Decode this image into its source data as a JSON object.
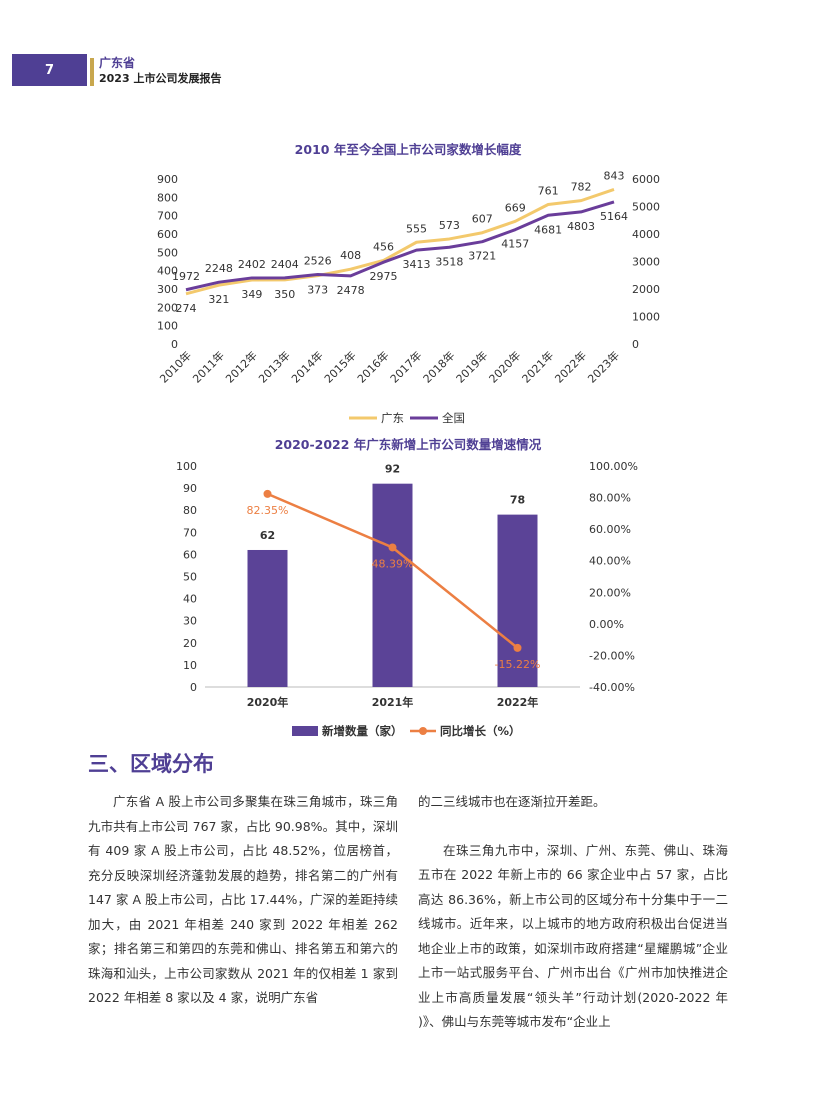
{
  "header": {
    "page_number": "7",
    "line1": "广东省",
    "line2": "2023 上市公司发展报告"
  },
  "chart_data": [
    {
      "type": "line",
      "title": "2010 年至今全国上市公司家数增长幅度",
      "categories": [
        "2010年",
        "2011年",
        "2012年",
        "2013年",
        "2014年",
        "2015年",
        "2016年",
        "2017年",
        "2018年",
        "2019年",
        "2020年",
        "2021年",
        "2022年",
        "2023年"
      ],
      "series": [
        {
          "name": "广东",
          "axis": "left",
          "color": "#f3c96c",
          "values": [
            274,
            321,
            349,
            350,
            373,
            408,
            456,
            555,
            573,
            607,
            669,
            761,
            782,
            843
          ],
          "labels": [
            "274",
            "321",
            "349",
            "350",
            "373",
            "408",
            "456",
            "555",
            "573",
            "607",
            "669",
            "761",
            "782",
            "843"
          ]
        },
        {
          "name": "全国",
          "axis": "right",
          "color": "#6a3d9a",
          "values": [
            1972,
            2248,
            2402,
            2404,
            2526,
            2478,
            2975,
            3413,
            3518,
            3721,
            4157,
            4681,
            4803,
            5164
          ],
          "labels": [
            "1972",
            "2248",
            "2402",
            "2404",
            "2526",
            "2478",
            "2975",
            "3413",
            "3518",
            "3721",
            "4157",
            "4681",
            "4803",
            "5164"
          ]
        }
      ],
      "left_axis": {
        "ylim": [
          0,
          900
        ],
        "ticks": [
          "0",
          "100",
          "200",
          "300",
          "400",
          "500",
          "600",
          "700",
          "800",
          "900"
        ]
      },
      "right_axis": {
        "ylim": [
          0,
          6000
        ],
        "ticks": [
          "0",
          "1000",
          "2000",
          "3000",
          "4000",
          "5000",
          "6000"
        ]
      },
      "legend": "bottom"
    },
    {
      "type": "bar",
      "title": "2020-2022 年广东新增上市公司数量增速情况",
      "categories": [
        "2020年",
        "2021年",
        "2022年"
      ],
      "series": [
        {
          "name": "新增数量（家）",
          "kind": "bar",
          "axis": "left",
          "color": "#5b4397",
          "values": [
            62,
            92,
            78
          ],
          "labels": [
            "62",
            "92",
            "78"
          ]
        },
        {
          "name": "同比增长（%）",
          "kind": "line",
          "axis": "right",
          "color": "#ec7f43",
          "values": [
            82.35,
            48.39,
            -15.22
          ],
          "labels": [
            "82.35%",
            "48.39%",
            "-15.22%"
          ]
        }
      ],
      "left_axis": {
        "ylim": [
          0,
          100
        ],
        "ticks": [
          "0",
          "10",
          "20",
          "30",
          "40",
          "50",
          "60",
          "70",
          "80",
          "90",
          "100"
        ]
      },
      "right_axis": {
        "ylim": [
          -40,
          100
        ],
        "ticks": [
          "-40.00%",
          "-20.00%",
          "0.00%",
          "20.00%",
          "40.00%",
          "60.00%",
          "80.00%",
          "100.00%"
        ]
      },
      "legend": "bottom"
    }
  ],
  "section_title": "三、区域分布",
  "body": {
    "left_col": [
      "广东省 A 股上市公司多聚集在珠三角城市，珠三角九市共有上市公司 767 家，占比 90.98%。其中，深圳有 409 家 A 股上市公司，占比 48.52%，位居榜首，充分反映深圳经济蓬勃发展的趋势，排名第二的广州有 147 家 A 股上市公司，占比 17.44%，广深的差距持续加大，由 2021 年相差 240 家到 2022 年相差 262 家；排名第三和第四的东莞和佛山、排名第五和第六的珠海和汕头，上市公司家数从 2021 年的仅相差 1 家到 2022 年相差 8 家以及 4 家，说明广东省"
    ],
    "right_col_first": "的二三线城市也在逐渐拉开差距。",
    "right_col_para": "在珠三角九市中，深圳、广州、东莞、佛山、珠海五市在 2022 年新上市的 66 家企业中占 57 家，占比高达 86.36%，新上市公司的区域分布十分集中于一二线城市。近年来，以上城市的地方政府积极出台促进当地企业上市的政策，如深圳市政府搭建“星耀鹏城”企业上市一站式服务平台、广州市出台《广州市加快推进企业上市高质量发展“领头羊”行动计划(2020-2022 年 )》、佛山与东莞等城市发布“企业上"
  }
}
